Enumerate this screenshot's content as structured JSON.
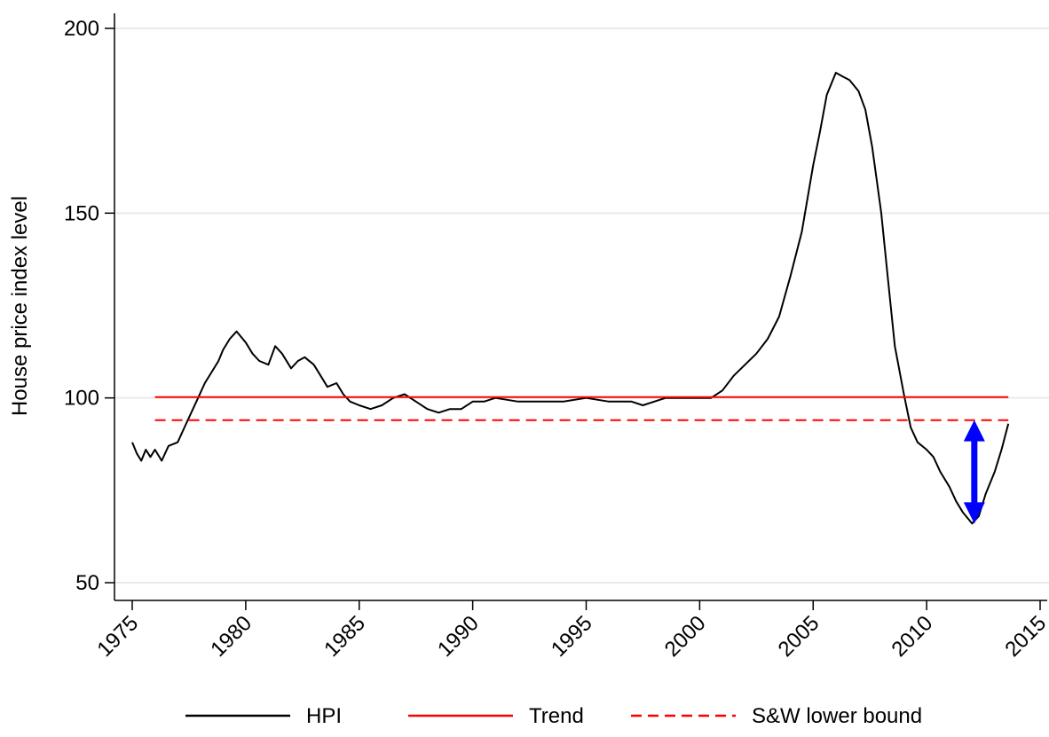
{
  "chart_data": {
    "type": "line",
    "title": "",
    "xlabel": "",
    "ylabel": "House price index level",
    "xlim": [
      1975,
      2015
    ],
    "ylim": [
      50,
      200
    ],
    "x_ticks": [
      "1975",
      "1980",
      "1985",
      "1990",
      "1995",
      "2000",
      "2005",
      "2010",
      "2015"
    ],
    "y_ticks": [
      "50",
      "100",
      "150",
      "200"
    ],
    "grid": "horizontal",
    "legend_position": "bottom",
    "series": [
      {
        "name": "HPI",
        "color": "#000000",
        "style": "solid",
        "points": [
          [
            1975.0,
            88
          ],
          [
            1975.2,
            85
          ],
          [
            1975.4,
            83
          ],
          [
            1975.6,
            86
          ],
          [
            1975.8,
            84
          ],
          [
            1976.0,
            86
          ],
          [
            1976.3,
            83
          ],
          [
            1976.6,
            87
          ],
          [
            1977.0,
            88
          ],
          [
            1977.3,
            92
          ],
          [
            1977.6,
            96
          ],
          [
            1977.9,
            100
          ],
          [
            1978.2,
            104
          ],
          [
            1978.5,
            107
          ],
          [
            1978.8,
            110
          ],
          [
            1979.0,
            113
          ],
          [
            1979.3,
            116
          ],
          [
            1979.6,
            118
          ],
          [
            1980.0,
            115
          ],
          [
            1980.3,
            112
          ],
          [
            1980.6,
            110
          ],
          [
            1981.0,
            109
          ],
          [
            1981.3,
            114
          ],
          [
            1981.6,
            112
          ],
          [
            1982.0,
            108
          ],
          [
            1982.3,
            110
          ],
          [
            1982.6,
            111
          ],
          [
            1983.0,
            109
          ],
          [
            1983.3,
            106
          ],
          [
            1983.6,
            103
          ],
          [
            1984.0,
            104
          ],
          [
            1984.3,
            101
          ],
          [
            1984.6,
            99
          ],
          [
            1985.0,
            98
          ],
          [
            1985.5,
            97
          ],
          [
            1986.0,
            98
          ],
          [
            1986.5,
            100
          ],
          [
            1987.0,
            101
          ],
          [
            1987.5,
            99
          ],
          [
            1988.0,
            97
          ],
          [
            1988.5,
            96
          ],
          [
            1989.0,
            97
          ],
          [
            1989.5,
            97
          ],
          [
            1990.0,
            99
          ],
          [
            1990.5,
            99
          ],
          [
            1991.0,
            100
          ],
          [
            1992.0,
            99
          ],
          [
            1993.0,
            99
          ],
          [
            1994.0,
            99
          ],
          [
            1995.0,
            100
          ],
          [
            1996.0,
            99
          ],
          [
            1997.0,
            99
          ],
          [
            1997.5,
            98
          ],
          [
            1998.0,
            99
          ],
          [
            1998.5,
            100
          ],
          [
            1999.0,
            100
          ],
          [
            1999.5,
            100
          ],
          [
            2000.0,
            100
          ],
          [
            2000.5,
            100
          ],
          [
            2001.0,
            102
          ],
          [
            2001.5,
            106
          ],
          [
            2002.0,
            109
          ],
          [
            2002.5,
            112
          ],
          [
            2003.0,
            116
          ],
          [
            2003.5,
            122
          ],
          [
            2004.0,
            133
          ],
          [
            2004.5,
            145
          ],
          [
            2005.0,
            163
          ],
          [
            2005.3,
            172
          ],
          [
            2005.6,
            182
          ],
          [
            2006.0,
            188
          ],
          [
            2006.3,
            187
          ],
          [
            2006.6,
            186
          ],
          [
            2007.0,
            183
          ],
          [
            2007.3,
            178
          ],
          [
            2007.6,
            168
          ],
          [
            2008.0,
            150
          ],
          [
            2008.3,
            132
          ],
          [
            2008.6,
            114
          ],
          [
            2009.0,
            101
          ],
          [
            2009.3,
            92
          ],
          [
            2009.6,
            88
          ],
          [
            2010.0,
            86
          ],
          [
            2010.3,
            84
          ],
          [
            2010.6,
            80
          ],
          [
            2011.0,
            76
          ],
          [
            2011.3,
            72
          ],
          [
            2011.6,
            69
          ],
          [
            2012.0,
            66
          ],
          [
            2012.3,
            68
          ],
          [
            2012.6,
            74
          ],
          [
            2013.0,
            80
          ],
          [
            2013.3,
            86
          ],
          [
            2013.6,
            93
          ]
        ]
      },
      {
        "name": "Trend",
        "color": "#ff0000",
        "style": "solid",
        "points": [
          [
            1976.0,
            100.2
          ],
          [
            2013.6,
            100.2
          ]
        ]
      },
      {
        "name": "S&W lower bound",
        "color": "#ff0000",
        "style": "dashed",
        "points": [
          [
            1976.0,
            94
          ],
          [
            2013.6,
            94
          ]
        ]
      }
    ],
    "annotation": {
      "type": "double-arrow",
      "color": "#0000ff",
      "x": 2012.1,
      "y_from": 94,
      "y_to": 66
    }
  }
}
